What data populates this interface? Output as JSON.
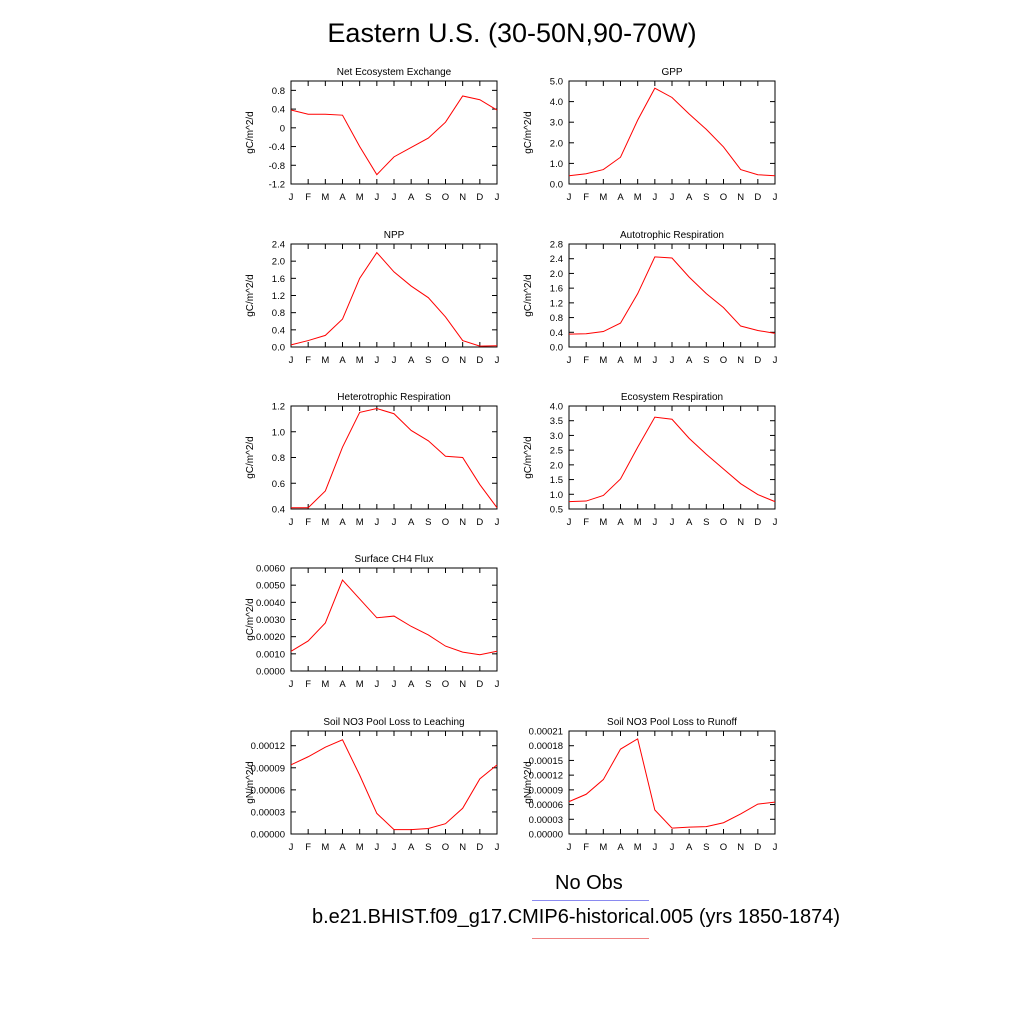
{
  "title": "Eastern U.S. (30-50N,90-70W)",
  "month_labels": [
    "J",
    "F",
    "M",
    "A",
    "M",
    "J",
    "J",
    "A",
    "S",
    "O",
    "N",
    "D",
    "J"
  ],
  "colors": {
    "model_line": "#ff0000",
    "obs_line": "#8a8af0",
    "model_legend_line": "#f08080"
  },
  "legend": {
    "obs_label": "No Obs",
    "model_label": "b.e21.BHIST.f09_g17.CMIP6-historical.005 (yrs 1850-1874)"
  },
  "chart_data": [
    {
      "type": "line",
      "title": "Net Ecosystem Exchange",
      "ylabel": "gC/m^2/d",
      "ylim": [
        -1.2,
        1.0
      ],
      "yticks": [
        -1.2,
        -0.8,
        -0.4,
        0,
        0.4,
        0.8
      ],
      "yticklabels": [
        "-1.2",
        "-0.8",
        "-0.4",
        "0",
        "0.4",
        "0.8"
      ],
      "values": [
        0.38,
        0.29,
        0.29,
        0.27,
        -0.4,
        -1.0,
        -0.62,
        -0.42,
        -0.22,
        0.12,
        0.68,
        0.6,
        0.38
      ]
    },
    {
      "type": "line",
      "title": "GPP",
      "ylabel": "gC/m^2/d",
      "ylim": [
        0,
        5.0
      ],
      "yticks": [
        0,
        1,
        2,
        3,
        4,
        5
      ],
      "yticklabels": [
        "0.0",
        "1.0",
        "2.0",
        "3.0",
        "4.0",
        "5.0"
      ],
      "values": [
        0.4,
        0.5,
        0.7,
        1.3,
        3.1,
        4.65,
        4.2,
        3.4,
        2.65,
        1.8,
        0.7,
        0.45,
        0.4
      ]
    },
    {
      "type": "line",
      "title": "NPP",
      "ylabel": "gC/m^2/d",
      "ylim": [
        0,
        2.4
      ],
      "yticks": [
        0,
        0.4,
        0.8,
        1.2,
        1.6,
        2.0,
        2.4
      ],
      "yticklabels": [
        "0.0",
        "0.4",
        "0.8",
        "1.2",
        "1.6",
        "2.0",
        "2.4"
      ],
      "values": [
        0.05,
        0.15,
        0.27,
        0.65,
        1.6,
        2.2,
        1.75,
        1.42,
        1.15,
        0.7,
        0.15,
        0.02,
        0.03
      ]
    },
    {
      "type": "line",
      "title": "Autotrophic Respiration",
      "ylabel": "gC/m^2/d",
      "ylim": [
        0,
        2.8
      ],
      "yticks": [
        0,
        0.4,
        0.8,
        1.2,
        1.6,
        2.0,
        2.4,
        2.8
      ],
      "yticklabels": [
        "0.0",
        "0.4",
        "0.8",
        "1.2",
        "1.6",
        "2.0",
        "2.4",
        "2.8"
      ],
      "values": [
        0.35,
        0.36,
        0.42,
        0.65,
        1.45,
        2.45,
        2.42,
        1.9,
        1.45,
        1.07,
        0.57,
        0.45,
        0.37
      ]
    },
    {
      "type": "line",
      "title": "Heterotrophic Respiration",
      "ylabel": "gC/m^2/d",
      "ylim": [
        0.4,
        1.2
      ],
      "yticks": [
        0.4,
        0.6,
        0.8,
        1.0,
        1.2
      ],
      "yticklabels": [
        "0.4",
        "0.6",
        "0.8",
        "1.0",
        "1.2"
      ],
      "values": [
        0.41,
        0.41,
        0.54,
        0.88,
        1.15,
        1.18,
        1.14,
        1.01,
        0.93,
        0.81,
        0.8,
        0.59,
        0.41
      ]
    },
    {
      "type": "line",
      "title": "Ecosystem Respiration",
      "ylabel": "gC/m^2/d",
      "ylim": [
        0.5,
        4.0
      ],
      "yticks": [
        0.5,
        1.0,
        1.5,
        2.0,
        2.5,
        3.0,
        3.5,
        4.0
      ],
      "yticklabels": [
        "0.5",
        "1.0",
        "1.5",
        "2.0",
        "2.5",
        "3.0",
        "3.5",
        "4.0"
      ],
      "values": [
        0.75,
        0.77,
        0.96,
        1.52,
        2.6,
        3.62,
        3.55,
        2.9,
        2.36,
        1.86,
        1.36,
        0.99,
        0.75
      ]
    },
    {
      "type": "line",
      "title": "Surface CH4 Flux",
      "ylabel": "gC/m^2/d",
      "ylim": [
        0,
        0.006
      ],
      "yticks": [
        0,
        0.001,
        0.002,
        0.003,
        0.004,
        0.005,
        0.006
      ],
      "yticklabels": [
        "0.0000",
        "0.0010",
        "0.0020",
        "0.0030",
        "0.0040",
        "0.0050",
        "0.0060"
      ],
      "values": [
        0.00115,
        0.00175,
        0.0028,
        0.0053,
        0.0042,
        0.0031,
        0.0032,
        0.0026,
        0.0021,
        0.00145,
        0.0011,
        0.00095,
        0.00115
      ]
    },
    {
      "type": "line",
      "title": "Soil NO3 Pool Loss to Leaching",
      "ylabel": "gN/m^2/d",
      "ylim": [
        0,
        0.00014
      ],
      "yticks": [
        0,
        3e-05,
        6e-05,
        9e-05,
        0.00012
      ],
      "yticklabels": [
        "0.00000",
        "0.00003",
        "0.00006",
        "0.00009",
        "0.00012"
      ],
      "values": [
        9.4e-05,
        0.000105,
        0.000118,
        0.000128,
        8e-05,
        2.8e-05,
        6e-06,
        6e-06,
        7.5e-06,
        1.4e-05,
        3.5e-05,
        7.5e-05,
        9.4e-05
      ]
    },
    {
      "type": "line",
      "title": "Soil NO3 Pool Loss to Runoff",
      "ylabel": "gN/m^2/d",
      "ylim": [
        0,
        0.00021
      ],
      "yticks": [
        0,
        3e-05,
        6e-05,
        9e-05,
        0.00012,
        0.00015,
        0.00018,
        0.00021
      ],
      "yticklabels": [
        "0.00000",
        "0.00003",
        "0.00006",
        "0.00009",
        "0.00012",
        "0.00015",
        "0.00018",
        "0.00021"
      ],
      "values": [
        6.6e-05,
        8.1e-05,
        0.000111,
        0.000173,
        0.000194,
        4.9e-05,
        1.2e-05,
        1.4e-05,
        1.5e-05,
        2.3e-05,
        4.1e-05,
        6.1e-05,
        6.5e-05
      ]
    }
  ]
}
